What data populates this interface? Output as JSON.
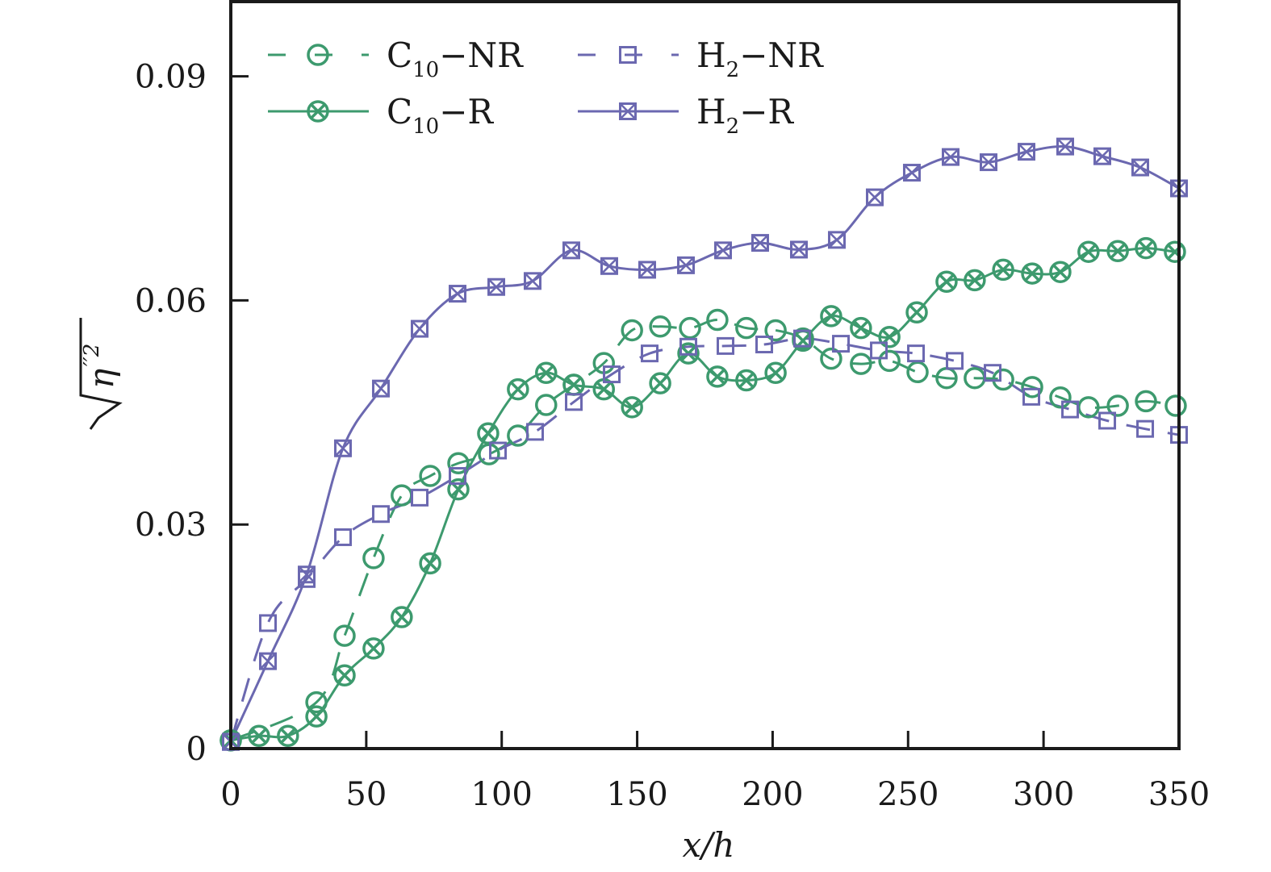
{
  "chart_data": {
    "type": "line",
    "title": "",
    "xlabel": "x/h",
    "ylabel": "sqrt(η''²)",
    "ylabel_parts": {
      "symbol": "η",
      "superscript": "′′2"
    },
    "xlim": [
      0,
      350
    ],
    "ylim": [
      0,
      0.1
    ],
    "xticks": [
      0,
      50,
      100,
      150,
      200,
      250,
      300,
      350
    ],
    "xtick_labels": [
      "0",
      "50",
      "100",
      "150",
      "200",
      "250",
      "300",
      "350"
    ],
    "yticks": [
      0,
      0.03,
      0.06,
      0.09
    ],
    "ytick_labels": [
      "0",
      "0.03",
      "0.06",
      "0.09"
    ],
    "grid": false,
    "legend_position": "top-left",
    "colors": {
      "C10": "#3d9a6e",
      "H2": "#6b68b0",
      "axis": "#1a1a1a"
    },
    "series": [
      {
        "name": "C10-NR",
        "label_main": "C",
        "label_sub": "10",
        "label_tail": "−NR",
        "color_key": "C10",
        "line": "dashed",
        "marker": "circle",
        "x": [
          0,
          31.6,
          42.0,
          52.7,
          63.1,
          73.6,
          84.0,
          95.3,
          106.0,
          116.4,
          126.6,
          137.7,
          148.1,
          158.5,
          169.5,
          179.6,
          190.3,
          201.1,
          211.2,
          221.6,
          232.6,
          243.1,
          253.5,
          264.2,
          274.6,
          285.1,
          295.8,
          306.2,
          316.6,
          327.4,
          337.8,
          348.8
        ],
        "y": [
          0.0011,
          0.0062,
          0.0151,
          0.0255,
          0.0339,
          0.0365,
          0.0382,
          0.0394,
          0.0419,
          0.046,
          0.0487,
          0.0516,
          0.056,
          0.0565,
          0.0563,
          0.0574,
          0.0563,
          0.056,
          0.0549,
          0.0522,
          0.0515,
          0.0519,
          0.0504,
          0.0496,
          0.0496,
          0.0494,
          0.0484,
          0.047,
          0.0457,
          0.0459,
          0.0465,
          0.0459
        ]
      },
      {
        "name": "C10-R",
        "label_main": "C",
        "label_sub": "10",
        "label_tail": "−R",
        "color_key": "C10",
        "line": "solid",
        "marker": "circle-x",
        "x": [
          0,
          10.4,
          21.1,
          31.6,
          42.0,
          52.7,
          63.1,
          73.6,
          84.0,
          95.0,
          106.0,
          116.4,
          126.6,
          137.7,
          148.1,
          158.5,
          168.9,
          179.6,
          190.3,
          201.1,
          211.2,
          221.6,
          232.6,
          243.1,
          253.2,
          264.2,
          274.6,
          285.1,
          295.8,
          306.2,
          316.6,
          327.4,
          337.8,
          348.5
        ],
        "y": [
          0.0011,
          0.0017,
          0.0017,
          0.0043,
          0.0098,
          0.0134,
          0.0176,
          0.0248,
          0.0347,
          0.0422,
          0.0481,
          0.0503,
          0.0487,
          0.0481,
          0.0457,
          0.0489,
          0.0529,
          0.0498,
          0.0493,
          0.0503,
          0.0546,
          0.0579,
          0.0563,
          0.0551,
          0.0584,
          0.0625,
          0.0627,
          0.0641,
          0.0636,
          0.0638,
          0.0665,
          0.0666,
          0.067,
          0.0665
        ]
      },
      {
        "name": "H2-NR",
        "label_main": "H",
        "label_sub": "2",
        "label_tail": "−NR",
        "color_key": "H2",
        "line": "dashed",
        "marker": "square",
        "x": [
          0,
          13.7,
          28.0,
          41.4,
          55.4,
          69.7,
          83.7,
          98.6,
          112.3,
          126.6,
          140.6,
          154.6,
          168.9,
          182.6,
          196.9,
          210.9,
          225.2,
          239.2,
          252.9,
          267.2,
          281.2,
          295.5,
          309.8,
          323.5,
          337.5,
          350.0
        ],
        "y": [
          0.0009,
          0.0168,
          0.0227,
          0.0283,
          0.0314,
          0.0336,
          0.0365,
          0.0399,
          0.0424,
          0.0464,
          0.0501,
          0.0529,
          0.0538,
          0.0539,
          0.0541,
          0.0549,
          0.0542,
          0.0533,
          0.0529,
          0.0519,
          0.0503,
          0.0471,
          0.0454,
          0.0439,
          0.0428,
          0.042
        ]
      },
      {
        "name": "H2-R",
        "label_main": "H",
        "label_sub": "2",
        "label_tail": "−R",
        "color_key": "H2",
        "line": "solid",
        "marker": "square-x",
        "x": [
          0,
          13.7,
          28.0,
          41.4,
          55.4,
          69.7,
          83.7,
          98.0,
          111.4,
          125.7,
          139.7,
          153.7,
          168.0,
          181.7,
          195.4,
          209.7,
          223.7,
          237.7,
          251.4,
          265.7,
          279.7,
          293.7,
          308.0,
          321.7,
          335.7,
          350.0
        ],
        "y": [
          0.0009,
          0.0117,
          0.0233,
          0.0402,
          0.0482,
          0.0562,
          0.0609,
          0.0618,
          0.0626,
          0.0667,
          0.0646,
          0.0641,
          0.0647,
          0.0667,
          0.0677,
          0.0668,
          0.0681,
          0.0738,
          0.0771,
          0.0792,
          0.0785,
          0.0799,
          0.0806,
          0.0793,
          0.0778,
          0.075
        ]
      }
    ]
  }
}
